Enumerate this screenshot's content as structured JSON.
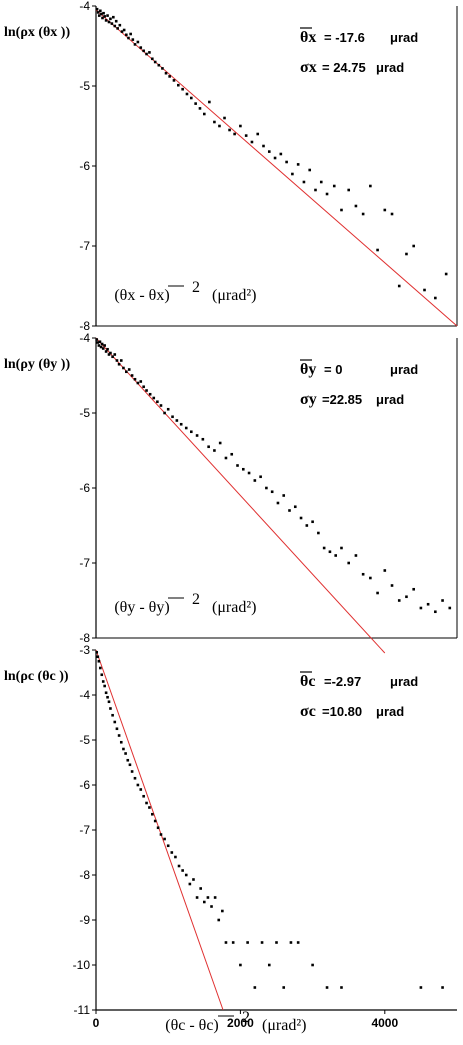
{
  "chart_data": [
    {
      "type": "scatter",
      "panel": "x",
      "ylabel": "ln(ρx (θx ))",
      "xlabel": "(θx - θx)² (μrad²)",
      "xlabel_text": "(θx - θx)",
      "xlabel_unit": "(μrad²)",
      "ylim": [
        -8,
        -4
      ],
      "xlim": [
        0,
        5000
      ],
      "yticks": [
        "-4",
        "-5",
        "-6",
        "-7",
        "-8"
      ],
      "annotation": {
        "mean_label": "θx",
        "mean_value": "= -17.6",
        "mean_unit": "μrad",
        "sigma_label": "σx",
        "sigma_value": "= 24.75",
        "sigma_unit": "μrad"
      },
      "fit_line": {
        "x": [
          0,
          5000
        ],
        "y": [
          -4.05,
          -8.0
        ]
      },
      "points": [
        [
          15,
          -4.04
        ],
        [
          30,
          -4.08
        ],
        [
          45,
          -4.12
        ],
        [
          60,
          -4.06
        ],
        [
          75,
          -4.1
        ],
        [
          90,
          -4.15
        ],
        [
          105,
          -4.09
        ],
        [
          120,
          -4.13
        ],
        [
          140,
          -4.18
        ],
        [
          160,
          -4.12
        ],
        [
          180,
          -4.2
        ],
        [
          200,
          -4.16
        ],
        [
          220,
          -4.22
        ],
        [
          240,
          -4.14
        ],
        [
          260,
          -4.25
        ],
        [
          280,
          -4.19
        ],
        [
          300,
          -4.28
        ],
        [
          330,
          -4.24
        ],
        [
          360,
          -4.32
        ],
        [
          390,
          -4.3
        ],
        [
          420,
          -4.36
        ],
        [
          450,
          -4.4
        ],
        [
          480,
          -4.35
        ],
        [
          510,
          -4.42
        ],
        [
          540,
          -4.48
        ],
        [
          580,
          -4.45
        ],
        [
          620,
          -4.52
        ],
        [
          660,
          -4.56
        ],
        [
          700,
          -4.6
        ],
        [
          740,
          -4.58
        ],
        [
          780,
          -4.66
        ],
        [
          820,
          -4.7
        ],
        [
          870,
          -4.74
        ],
        [
          920,
          -4.78
        ],
        [
          970,
          -4.84
        ],
        [
          1020,
          -4.88
        ],
        [
          1080,
          -4.93
        ],
        [
          1140,
          -4.99
        ],
        [
          1200,
          -5.04
        ],
        [
          1260,
          -5.1
        ],
        [
          1320,
          -5.15
        ],
        [
          1380,
          -5.22
        ],
        [
          1440,
          -5.28
        ],
        [
          1500,
          -5.35
        ],
        [
          1570,
          -5.2
        ],
        [
          1640,
          -5.45
        ],
        [
          1710,
          -5.5
        ],
        [
          1780,
          -5.4
        ],
        [
          1850,
          -5.55
        ],
        [
          1920,
          -5.6
        ],
        [
          2000,
          -5.5
        ],
        [
          2080,
          -5.62
        ],
        [
          2160,
          -5.7
        ],
        [
          2240,
          -5.6
        ],
        [
          2320,
          -5.75
        ],
        [
          2400,
          -5.82
        ],
        [
          2480,
          -5.9
        ],
        [
          2560,
          -5.85
        ],
        [
          2640,
          -5.95
        ],
        [
          2720,
          -6.1
        ],
        [
          2800,
          -5.98
        ],
        [
          2880,
          -6.2
        ],
        [
          2960,
          -6.05
        ],
        [
          3040,
          -6.3
        ],
        [
          3120,
          -6.2
        ],
        [
          3200,
          -6.35
        ],
        [
          3300,
          -6.25
        ],
        [
          3400,
          -6.55
        ],
        [
          3500,
          -6.3
        ],
        [
          3600,
          -6.5
        ],
        [
          3700,
          -6.6
        ],
        [
          3800,
          -6.25
        ],
        [
          3900,
          -7.05
        ],
        [
          4000,
          -6.55
        ],
        [
          4100,
          -6.6
        ],
        [
          4200,
          -7.5
        ],
        [
          4300,
          -7.1
        ],
        [
          4400,
          -7.0
        ],
        [
          4550,
          -7.55
        ],
        [
          4700,
          -7.65
        ],
        [
          4850,
          -7.35
        ]
      ]
    },
    {
      "type": "scatter",
      "panel": "y",
      "ylabel": "ln(ρy (θy ))",
      "xlabel": "(θy - θy)² (μrad²)",
      "xlabel_text": "(θy - θy)",
      "xlabel_unit": "(μrad²)",
      "ylim": [
        -8,
        -4
      ],
      "xlim": [
        0,
        5000
      ],
      "yticks": [
        "-4",
        "-5",
        "-6",
        "-7",
        "-8"
      ],
      "annotation": {
        "mean_label": "θy",
        "mean_value": "= 0",
        "mean_unit": "μrad",
        "sigma_label": "σy",
        "sigma_value": "=22.85",
        "sigma_unit": "μrad"
      },
      "fit_line": {
        "x": [
          0,
          4000
        ],
        "y": [
          -4.0,
          -8.2
        ]
      },
      "points": [
        [
          10,
          -4.02
        ],
        [
          25,
          -4.06
        ],
        [
          40,
          -4.1
        ],
        [
          55,
          -4.05
        ],
        [
          70,
          -4.12
        ],
        [
          85,
          -4.08
        ],
        [
          100,
          -4.14
        ],
        [
          120,
          -4.1
        ],
        [
          140,
          -4.18
        ],
        [
          160,
          -4.15
        ],
        [
          180,
          -4.22
        ],
        [
          200,
          -4.2
        ],
        [
          230,
          -4.25
        ],
        [
          260,
          -4.22
        ],
        [
          290,
          -4.3
        ],
        [
          320,
          -4.35
        ],
        [
          350,
          -4.3
        ],
        [
          380,
          -4.4
        ],
        [
          420,
          -4.45
        ],
        [
          460,
          -4.42
        ],
        [
          500,
          -4.5
        ],
        [
          540,
          -4.55
        ],
        [
          580,
          -4.6
        ],
        [
          620,
          -4.58
        ],
        [
          660,
          -4.65
        ],
        [
          700,
          -4.7
        ],
        [
          750,
          -4.75
        ],
        [
          800,
          -4.8
        ],
        [
          850,
          -4.85
        ],
        [
          900,
          -4.9
        ],
        [
          950,
          -5.0
        ],
        [
          1000,
          -4.95
        ],
        [
          1060,
          -5.05
        ],
        [
          1120,
          -5.1
        ],
        [
          1180,
          -5.15
        ],
        [
          1250,
          -5.2
        ],
        [
          1320,
          -5.25
        ],
        [
          1400,
          -5.3
        ],
        [
          1480,
          -5.35
        ],
        [
          1560,
          -5.45
        ],
        [
          1640,
          -5.5
        ],
        [
          1720,
          -5.4
        ],
        [
          1800,
          -5.6
        ],
        [
          1880,
          -5.55
        ],
        [
          1960,
          -5.7
        ],
        [
          2040,
          -5.75
        ],
        [
          2120,
          -5.8
        ],
        [
          2200,
          -5.9
        ],
        [
          2280,
          -5.85
        ],
        [
          2360,
          -6.0
        ],
        [
          2440,
          -6.05
        ],
        [
          2520,
          -6.2
        ],
        [
          2600,
          -6.1
        ],
        [
          2680,
          -6.3
        ],
        [
          2760,
          -6.25
        ],
        [
          2840,
          -6.4
        ],
        [
          2920,
          -6.5
        ],
        [
          3000,
          -6.45
        ],
        [
          3080,
          -6.6
        ],
        [
          3160,
          -6.8
        ],
        [
          3240,
          -6.85
        ],
        [
          3320,
          -6.9
        ],
        [
          3400,
          -6.8
        ],
        [
          3500,
          -7.0
        ],
        [
          3600,
          -6.9
        ],
        [
          3700,
          -7.15
        ],
        [
          3800,
          -7.2
        ],
        [
          3900,
          -7.4
        ],
        [
          4000,
          -7.1
        ],
        [
          4100,
          -7.3
        ],
        [
          4200,
          -7.5
        ],
        [
          4300,
          -7.45
        ],
        [
          4400,
          -7.35
        ],
        [
          4500,
          -7.6
        ],
        [
          4600,
          -7.55
        ],
        [
          4700,
          -7.65
        ],
        [
          4800,
          -7.5
        ],
        [
          4900,
          -7.6
        ]
      ]
    },
    {
      "type": "scatter",
      "panel": "c",
      "ylabel": "ln(ρc (θc ))",
      "xlabel": "(θc - θc)² (μrad²)",
      "xlabel_text": "(θc - θc)",
      "xlabel_unit": "(μrad²)",
      "ylim": [
        -11,
        -3
      ],
      "xlim": [
        0,
        5000
      ],
      "yticks": [
        "-3",
        "-4",
        "-5",
        "-6",
        "-7",
        "-8",
        "-9",
        "-10",
        "-11"
      ],
      "xticks": [
        "0",
        "2000",
        "4000"
      ],
      "annotation": {
        "mean_label": "θc",
        "mean_value": "=-2.97",
        "mean_unit": "μrad",
        "sigma_label": "σc",
        "sigma_value": "=10.80",
        "sigma_unit": "μrad"
      },
      "fit_line": {
        "x": [
          0,
          1760
        ],
        "y": [
          -3.0,
          -11.0
        ]
      },
      "points": [
        [
          10,
          -3.05
        ],
        [
          25,
          -3.15
        ],
        [
          40,
          -3.25
        ],
        [
          60,
          -3.4
        ],
        [
          80,
          -3.55
        ],
        [
          100,
          -3.7
        ],
        [
          120,
          -3.8
        ],
        [
          140,
          -3.95
        ],
        [
          160,
          -4.05
        ],
        [
          180,
          -4.15
        ],
        [
          200,
          -4.3
        ],
        [
          230,
          -4.45
        ],
        [
          260,
          -4.6
        ],
        [
          290,
          -4.75
        ],
        [
          320,
          -4.9
        ],
        [
          350,
          -5.05
        ],
        [
          380,
          -5.2
        ],
        [
          410,
          -5.3
        ],
        [
          440,
          -5.45
        ],
        [
          470,
          -5.55
        ],
        [
          500,
          -5.7
        ],
        [
          540,
          -5.85
        ],
        [
          580,
          -6.0
        ],
        [
          620,
          -6.1
        ],
        [
          660,
          -6.25
        ],
        [
          700,
          -6.4
        ],
        [
          740,
          -6.5
        ],
        [
          780,
          -6.65
        ],
        [
          820,
          -6.8
        ],
        [
          860,
          -6.95
        ],
        [
          900,
          -7.1
        ],
        [
          950,
          -7.2
        ],
        [
          1000,
          -7.35
        ],
        [
          1050,
          -7.5
        ],
        [
          1100,
          -7.6
        ],
        [
          1150,
          -7.8
        ],
        [
          1200,
          -7.9
        ],
        [
          1250,
          -8.0
        ],
        [
          1300,
          -8.2
        ],
        [
          1350,
          -8.1
        ],
        [
          1400,
          -8.5
        ],
        [
          1450,
          -8.3
        ],
        [
          1500,
          -8.6
        ],
        [
          1550,
          -8.5
        ],
        [
          1600,
          -8.7
        ],
        [
          1650,
          -8.5
        ],
        [
          1700,
          -9.0
        ],
        [
          1750,
          -8.8
        ],
        [
          1800,
          -9.5
        ],
        [
          1900,
          -9.5
        ],
        [
          2000,
          -10.0
        ],
        [
          2100,
          -9.5
        ],
        [
          2200,
          -10.5
        ],
        [
          2300,
          -9.5
        ],
        [
          2400,
          -10.0
        ],
        [
          2500,
          -9.5
        ],
        [
          2600,
          -10.5
        ],
        [
          2700,
          -9.5
        ],
        [
          2800,
          -9.5
        ],
        [
          3000,
          -10.0
        ],
        [
          3200,
          -10.5
        ],
        [
          3400,
          -10.5
        ],
        [
          4500,
          -10.5
        ],
        [
          4800,
          -10.5
        ]
      ]
    }
  ]
}
